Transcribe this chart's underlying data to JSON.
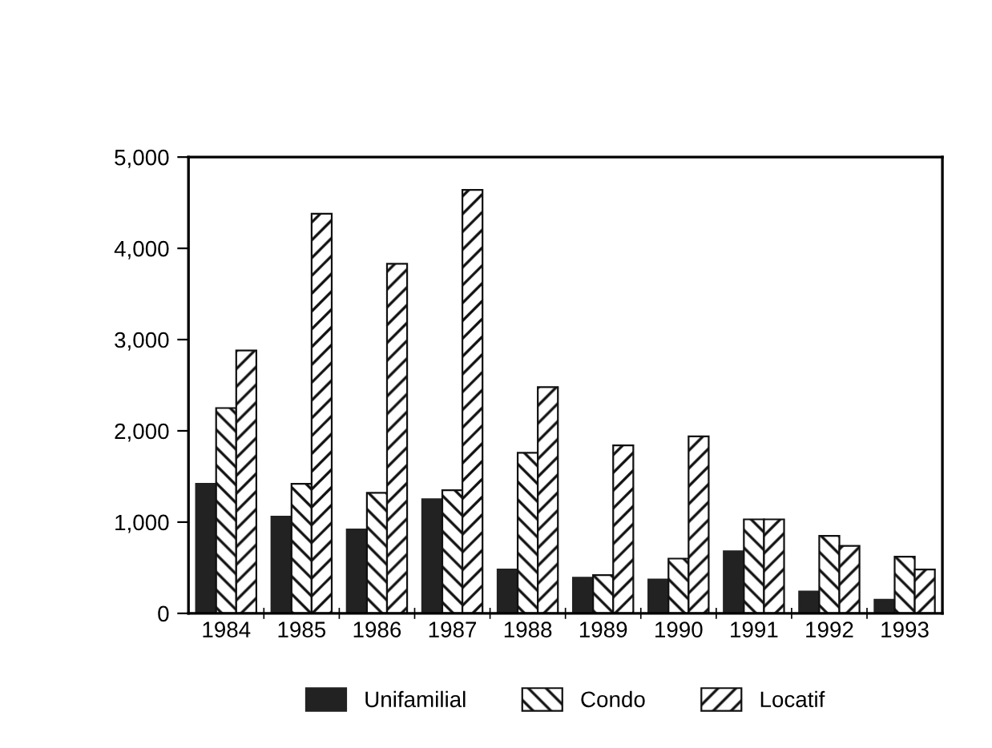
{
  "chart_data": {
    "type": "bar",
    "categories": [
      "1984",
      "1985",
      "1986",
      "1987",
      "1988",
      "1989",
      "1990",
      "1991",
      "1992",
      "1993"
    ],
    "series": [
      {
        "name": "Unifamilial",
        "color": "#222222",
        "values": [
          1420,
          1060,
          920,
          1250,
          480,
          390,
          370,
          680,
          240,
          150
        ]
      },
      {
        "name": "Condo",
        "color": "#111111",
        "values": [
          2250,
          1420,
          1320,
          1350,
          1760,
          420,
          600,
          1030,
          850,
          620
        ]
      },
      {
        "name": "Locatif",
        "color": "#111111",
        "values": [
          2880,
          4380,
          3830,
          4640,
          2480,
          1840,
          1940,
          1030,
          740,
          480
        ]
      }
    ],
    "ylim": [
      0,
      5000
    ],
    "yticks": [
      {
        "value": 0,
        "label": "0"
      },
      {
        "value": 1000,
        "label": "1,000"
      },
      {
        "value": 2000,
        "label": "2,000"
      },
      {
        "value": 3000,
        "label": "3,000"
      },
      {
        "value": 4000,
        "label": "4,000"
      },
      {
        "value": 5000,
        "label": "5,000"
      }
    ],
    "grid": false,
    "legend": "bottom"
  }
}
